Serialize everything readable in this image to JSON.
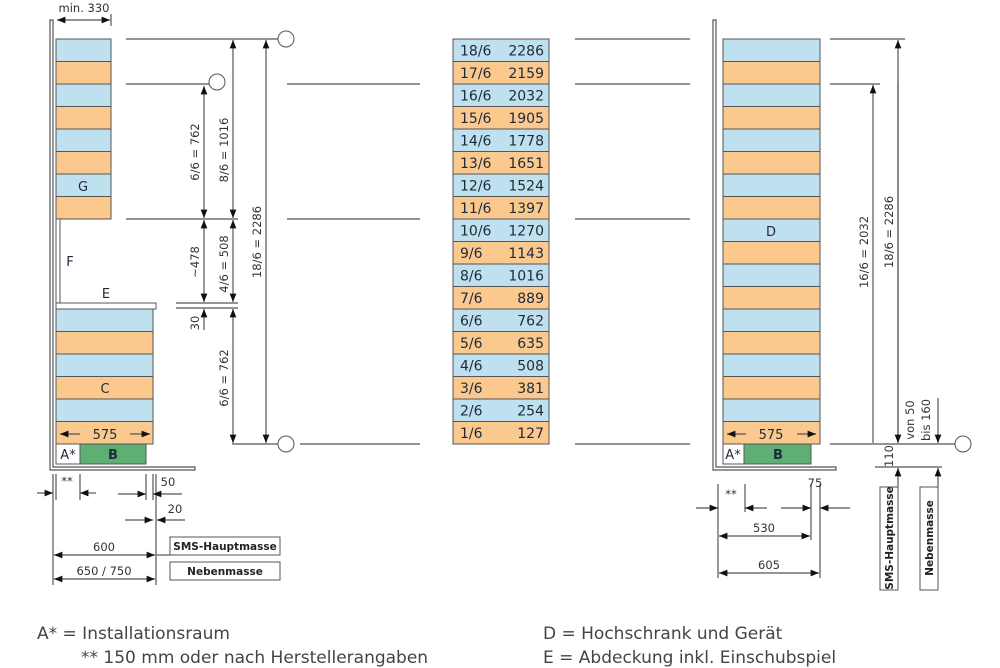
{
  "colors": {
    "blue": "#bfe0ee",
    "orange": "#fbc88e",
    "green": "#5fae74",
    "line": "#555555"
  },
  "left": {
    "min_width": "min. 330",
    "labels": {
      "G": "G",
      "F": "F",
      "E": "E",
      "C": "C",
      "A": "A*",
      "B": "B",
      "width575": "575"
    },
    "dims": {
      "d1": "6/6 = 762",
      "d2": "8/6 = 1016",
      "d3": "18/6 = 2286",
      "d4": "~478",
      "d5": "4/6 = 508",
      "d6": "30",
      "d7": "6/6 = 762"
    },
    "bottom": {
      "star": "**",
      "d50": "50",
      "d20": "20",
      "d600": "600",
      "d650": "650 / 750",
      "main": "SMS-Hauptmasse",
      "side": "Nebenmasse"
    }
  },
  "table": {
    "rows": [
      [
        "18/6",
        "2286"
      ],
      [
        "17/6",
        "2159"
      ],
      [
        "16/6",
        "2032"
      ],
      [
        "15/6",
        "1905"
      ],
      [
        "14/6",
        "1778"
      ],
      [
        "13/6",
        "1651"
      ],
      [
        "12/6",
        "1524"
      ],
      [
        "11/6",
        "1397"
      ],
      [
        "10/6",
        "1270"
      ],
      [
        "9/6",
        "1143"
      ],
      [
        "8/6",
        "1016"
      ],
      [
        "7/6",
        "889"
      ],
      [
        "6/6",
        "762"
      ],
      [
        "5/6",
        "635"
      ],
      [
        "4/6",
        "508"
      ],
      [
        "3/6",
        "381"
      ],
      [
        "2/6",
        "254"
      ],
      [
        "1/6",
        "127"
      ]
    ]
  },
  "right": {
    "labels": {
      "D": "D",
      "A": "A*",
      "B": "B",
      "width575": "575"
    },
    "dims": {
      "d1": "16/6 = 2032",
      "d2": "18/6 = 2286",
      "von": "von 50",
      "bis": "bis 160",
      "d110": "110"
    },
    "bottom": {
      "star": "**",
      "d75": "75",
      "d530": "530",
      "d605": "605",
      "main": "SMS-Hauptmasse",
      "side": "Nebenmasse"
    }
  },
  "legend": {
    "a": "A* = Installationsraum",
    "star": "** 150 mm oder nach Herstellerangaben",
    "d": "D = Hochschrank und Gerät",
    "e": "E = Abdeckung inkl. Einschubspiel"
  }
}
